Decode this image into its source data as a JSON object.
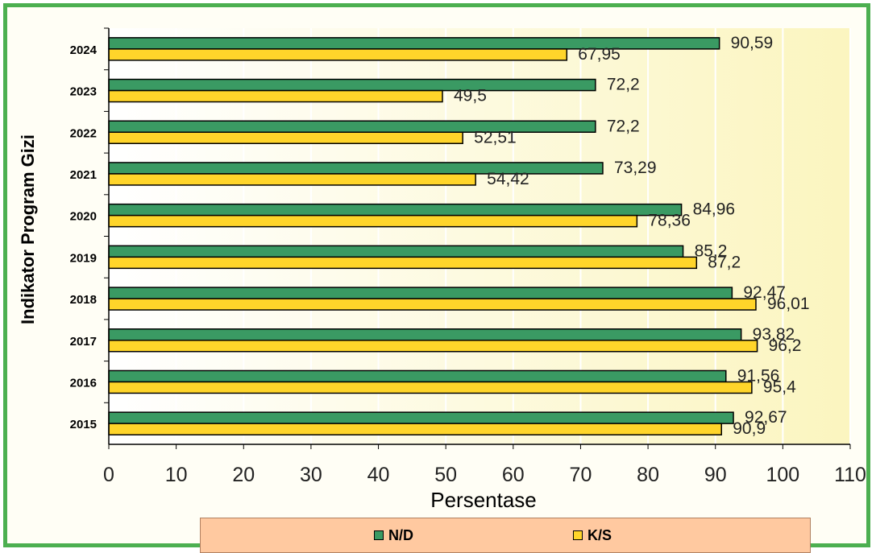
{
  "chart_data": {
    "type": "bar",
    "orientation": "horizontal",
    "categories": [
      "2015",
      "2016",
      "2017",
      "2018",
      "2019",
      "2020",
      "2021",
      "2022",
      "2023",
      "2024"
    ],
    "series": [
      {
        "name": "N/D",
        "color": "#3a9a63",
        "values": [
          92.67,
          91.56,
          93.82,
          92.47,
          85.2,
          84.96,
          73.29,
          72.2,
          72.2,
          90.59
        ],
        "labels": [
          "92,67",
          "91,56",
          "93,82",
          "92,47",
          "85,2",
          "84,96",
          "73,29",
          "72,2",
          "72,2",
          "90,59"
        ]
      },
      {
        "name": "K/S",
        "color": "#ffd52a",
        "values": [
          90.9,
          95.4,
          96.2,
          96.01,
          87.2,
          78.36,
          54.42,
          52.51,
          49.5,
          67.95
        ],
        "labels": [
          "90,9",
          "95,4",
          "96,2",
          "96,01",
          "87,2",
          "78,36",
          "54,42",
          "52,51",
          "49,5",
          "67,95"
        ]
      }
    ],
    "xlabel": "Persentase",
    "ylabel": "Indikator Program Gizi",
    "xlim": [
      0,
      110
    ],
    "xticks": [
      0,
      10,
      20,
      30,
      40,
      50,
      60,
      70,
      80,
      90,
      100,
      110
    ],
    "grid": true,
    "legend_position": "bottom"
  }
}
